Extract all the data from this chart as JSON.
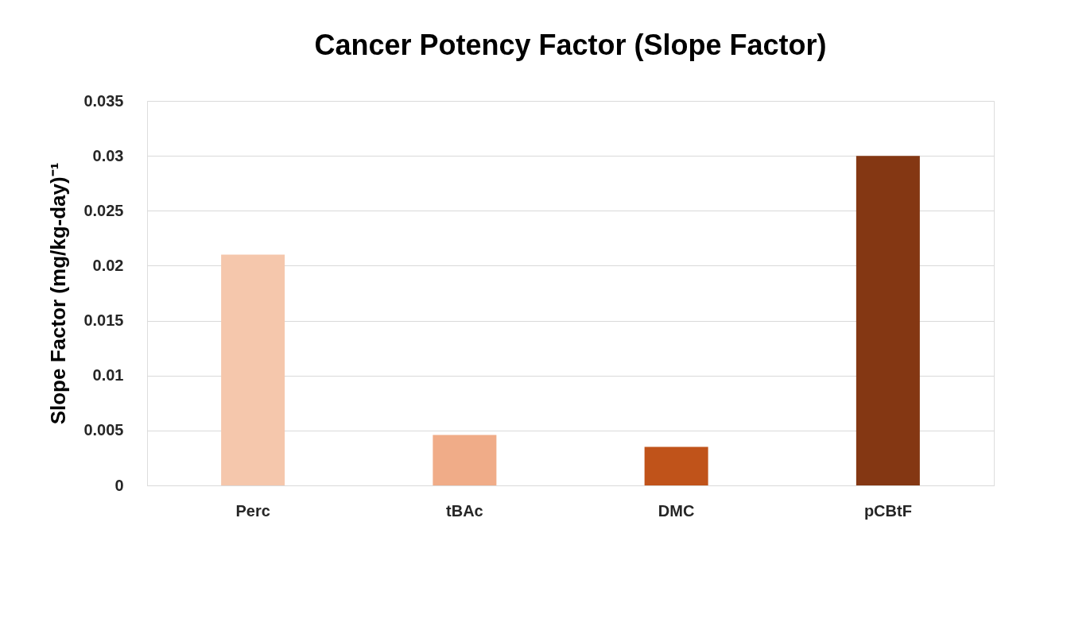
{
  "chart_data": {
    "type": "bar",
    "title": "Cancer Potency Factor (Slope Factor)",
    "ylabel": "Slope Factor (mg/kg-day)⁻¹",
    "categories": [
      "Perc",
      "tBAc",
      "DMC",
      "pCBtF"
    ],
    "values": [
      0.021,
      0.0046,
      0.0035,
      0.03
    ],
    "colors": [
      "#f5c7ac",
      "#f0ac88",
      "#c0531a",
      "#843713"
    ],
    "ylim": [
      0,
      0.035
    ],
    "yticks": [
      0,
      0.005,
      0.01,
      0.015,
      0.02,
      0.025,
      0.03,
      0.035
    ],
    "grid": "y",
    "legend": false
  }
}
